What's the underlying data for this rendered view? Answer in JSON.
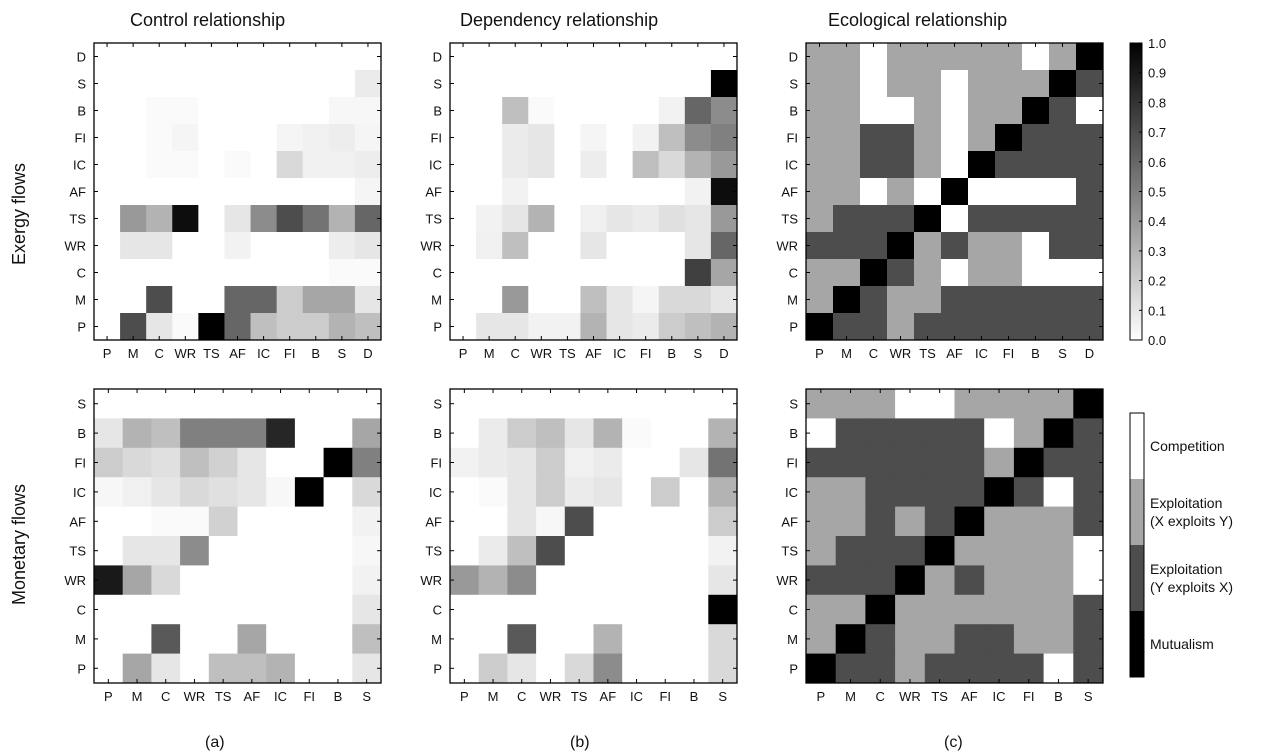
{
  "figure": {
    "col_titles": [
      "Control relationship",
      "Dependency relationship",
      "Ecological relationship"
    ],
    "row_titles": [
      "Exergy flows",
      "Monetary flows"
    ],
    "panel_labels": [
      "(a)",
      "(b)",
      "(c)"
    ]
  },
  "colorbar": {
    "ticks": [
      "1.0",
      "0.9",
      "0.8",
      "0.7",
      "0.6",
      "0.5",
      "0.4",
      "0.3",
      "0.2",
      "0.1",
      "0.0"
    ]
  },
  "legend": {
    "items": [
      {
        "label": "Competition",
        "code": 0,
        "color": "#ffffff"
      },
      {
        "label": "Exploitation\n(X exploits Y)",
        "code": 1,
        "color": "#a6a6a6"
      },
      {
        "label": "Exploitation\n(Y exploits X)",
        "code": 2,
        "color": "#4d4d4d"
      },
      {
        "label": "Mutualism",
        "code": 3,
        "color": "#000000"
      }
    ]
  },
  "chart_data": [
    {
      "id": "exergy-control",
      "type": "heatmap",
      "title": "",
      "x_labels": [
        "P",
        "M",
        "C",
        "WR",
        "TS",
        "AF",
        "IC",
        "FI",
        "B",
        "S",
        "D"
      ],
      "y_labels": [
        "D",
        "S",
        "B",
        "FI",
        "IC",
        "AF",
        "TS",
        "WR",
        "C",
        "M",
        "P"
      ],
      "scale": [
        0,
        1
      ],
      "values": [
        [
          0,
          0,
          0,
          0,
          0,
          0,
          0,
          0,
          0,
          0,
          0
        ],
        [
          0,
          0,
          0,
          0,
          0,
          0,
          0,
          0,
          0,
          0,
          0.08
        ],
        [
          0,
          0,
          0.02,
          0.02,
          0,
          0,
          0,
          0,
          0,
          0.03,
          0.03
        ],
        [
          0,
          0,
          0.02,
          0.04,
          0,
          0,
          0,
          0.04,
          0.06,
          0.07,
          0.04
        ],
        [
          0,
          0,
          0.02,
          0.02,
          0,
          0.02,
          0,
          0.15,
          0.06,
          0.06,
          0.07
        ],
        [
          0,
          0,
          0,
          0,
          0,
          0,
          0,
          0,
          0,
          0,
          0.04
        ],
        [
          0,
          0.4,
          0.3,
          0.95,
          0,
          0.1,
          0.45,
          0.7,
          0.55,
          0.3,
          0.6
        ],
        [
          0,
          0.1,
          0.1,
          0,
          0,
          0.05,
          0,
          0,
          0,
          0.07,
          0.1
        ],
        [
          0,
          0,
          0,
          0,
          0,
          0,
          0,
          0,
          0,
          0.02,
          0.02
        ],
        [
          0,
          0,
          0.7,
          0,
          0,
          0.6,
          0.6,
          0.2,
          0.35,
          0.35,
          0.1
        ],
        [
          0,
          0.7,
          0.1,
          0.02,
          1,
          0.6,
          0.25,
          0.2,
          0.2,
          0.3,
          0.25
        ]
      ]
    },
    {
      "id": "exergy-dependency",
      "type": "heatmap",
      "title": "",
      "x_labels": [
        "P",
        "M",
        "C",
        "WR",
        "TS",
        "AF",
        "IC",
        "FI",
        "B",
        "S",
        "D"
      ],
      "y_labels": [
        "D",
        "S",
        "B",
        "FI",
        "IC",
        "AF",
        "TS",
        "WR",
        "C",
        "M",
        "P"
      ],
      "scale": [
        0,
        1
      ],
      "values": [
        [
          0,
          0,
          0,
          0,
          0,
          0,
          0,
          0,
          0,
          0,
          0
        ],
        [
          0,
          0,
          0,
          0,
          0,
          0,
          0,
          0,
          0,
          0,
          1
        ],
        [
          0,
          0,
          0.25,
          0.02,
          0,
          0,
          0,
          0,
          0.05,
          0.6,
          0.45
        ],
        [
          0,
          0,
          0.08,
          0.1,
          0,
          0.04,
          0,
          0.05,
          0.25,
          0.45,
          0.5
        ],
        [
          0,
          0,
          0.08,
          0.1,
          0,
          0.07,
          0,
          0.25,
          0.15,
          0.3,
          0.4
        ],
        [
          0,
          0,
          0.05,
          0,
          0,
          0,
          0,
          0,
          0,
          0.05,
          0.95
        ],
        [
          0,
          0.05,
          0.1,
          0.3,
          0,
          0.06,
          0.1,
          0.08,
          0.12,
          0.1,
          0.4
        ],
        [
          0,
          0.06,
          0.25,
          0,
          0,
          0.1,
          0,
          0,
          0,
          0.1,
          0.6
        ],
        [
          0,
          0,
          0,
          0,
          0,
          0,
          0,
          0,
          0,
          0.75,
          0.35
        ],
        [
          0,
          0,
          0.4,
          0,
          0,
          0.25,
          0.1,
          0.04,
          0.15,
          0.15,
          0.1
        ],
        [
          0,
          0.1,
          0.1,
          0.05,
          0.05,
          0.3,
          0.1,
          0.08,
          0.2,
          0.25,
          0.3
        ]
      ]
    },
    {
      "id": "exergy-ecological",
      "type": "heatmap",
      "title": "",
      "x_labels": [
        "P",
        "M",
        "C",
        "WR",
        "TS",
        "AF",
        "IC",
        "FI",
        "B",
        "S",
        "D"
      ],
      "y_labels": [
        "D",
        "S",
        "B",
        "FI",
        "IC",
        "AF",
        "TS",
        "WR",
        "C",
        "M",
        "P"
      ],
      "scale": "categorical",
      "values": [
        [
          1,
          1,
          0,
          1,
          1,
          1,
          1,
          1,
          0,
          1,
          3
        ],
        [
          1,
          1,
          0,
          1,
          1,
          0,
          1,
          1,
          1,
          3,
          2
        ],
        [
          1,
          1,
          0,
          0,
          1,
          0,
          1,
          1,
          3,
          2,
          0
        ],
        [
          1,
          1,
          2,
          2,
          1,
          0,
          1,
          3,
          2,
          2,
          2
        ],
        [
          1,
          1,
          2,
          2,
          1,
          0,
          3,
          2,
          2,
          2,
          2
        ],
        [
          1,
          1,
          0,
          1,
          0,
          3,
          0,
          0,
          0,
          0,
          2
        ],
        [
          1,
          2,
          2,
          2,
          3,
          0,
          2,
          2,
          2,
          2,
          2
        ],
        [
          2,
          2,
          2,
          3,
          1,
          2,
          1,
          1,
          0,
          2,
          2
        ],
        [
          1,
          1,
          3,
          2,
          1,
          0,
          1,
          1,
          0,
          0,
          0
        ],
        [
          1,
          3,
          2,
          1,
          1,
          2,
          2,
          2,
          2,
          2,
          2
        ],
        [
          3,
          2,
          2,
          1,
          2,
          2,
          2,
          2,
          2,
          2,
          2
        ]
      ]
    },
    {
      "id": "monetary-control",
      "type": "heatmap",
      "title": "",
      "x_labels": [
        "P",
        "M",
        "C",
        "WR",
        "TS",
        "AF",
        "IC",
        "FI",
        "B",
        "S"
      ],
      "y_labels": [
        "S",
        "B",
        "FI",
        "IC",
        "AF",
        "TS",
        "WR",
        "C",
        "M",
        "P"
      ],
      "scale": [
        0,
        1
      ],
      "values": [
        [
          0,
          0,
          0,
          0,
          0,
          0,
          0,
          0,
          0,
          0
        ],
        [
          0.1,
          0.3,
          0.25,
          0.5,
          0.5,
          0.5,
          0.85,
          0,
          0,
          0.35
        ],
        [
          0.2,
          0.15,
          0.12,
          0.25,
          0.18,
          0.1,
          0,
          0,
          1,
          0.5
        ],
        [
          0.03,
          0.06,
          0.1,
          0.15,
          0.12,
          0.1,
          0.03,
          1,
          0,
          0.15
        ],
        [
          0,
          0,
          0.02,
          0.02,
          0.18,
          0,
          0,
          0,
          0,
          0.05
        ],
        [
          0,
          0.1,
          0.1,
          0.45,
          0,
          0,
          0,
          0,
          0,
          0.03
        ],
        [
          0.9,
          0.35,
          0.15,
          0,
          0,
          0,
          0,
          0,
          0,
          0.05
        ],
        [
          0,
          0,
          0,
          0,
          0,
          0,
          0,
          0,
          0,
          0.1
        ],
        [
          0,
          0,
          0.65,
          0,
          0,
          0.35,
          0,
          0,
          0,
          0.25
        ],
        [
          0,
          0.35,
          0.1,
          0,
          0.25,
          0.25,
          0.3,
          0,
          0,
          0.1
        ]
      ]
    },
    {
      "id": "monetary-dependency",
      "type": "heatmap",
      "title": "",
      "x_labels": [
        "P",
        "M",
        "C",
        "WR",
        "TS",
        "AF",
        "IC",
        "FI",
        "B",
        "S"
      ],
      "y_labels": [
        "S",
        "B",
        "FI",
        "IC",
        "AF",
        "TS",
        "WR",
        "C",
        "M",
        "P"
      ],
      "scale": [
        0,
        1
      ],
      "values": [
        [
          0,
          0,
          0,
          0,
          0,
          0,
          0,
          0,
          0,
          0
        ],
        [
          0,
          0.08,
          0.2,
          0.25,
          0.1,
          0.3,
          0.02,
          0,
          0,
          0.3
        ],
        [
          0.05,
          0.08,
          0.1,
          0.2,
          0.06,
          0.08,
          0,
          0,
          0.1,
          0.55
        ],
        [
          0,
          0.02,
          0.1,
          0.2,
          0.08,
          0.1,
          0,
          0.2,
          0,
          0.3
        ],
        [
          0,
          0,
          0.1,
          0.03,
          0.7,
          0,
          0,
          0,
          0,
          0.2
        ],
        [
          0,
          0.08,
          0.25,
          0.7,
          0,
          0,
          0,
          0,
          0,
          0.05
        ],
        [
          0.4,
          0.3,
          0.45,
          0,
          0,
          0,
          0,
          0,
          0,
          0.1
        ],
        [
          0,
          0,
          0,
          0,
          0,
          0,
          0,
          0,
          0,
          1
        ],
        [
          0,
          0,
          0.65,
          0,
          0,
          0.3,
          0,
          0,
          0,
          0.15
        ],
        [
          0,
          0.2,
          0.1,
          0,
          0.15,
          0.45,
          0,
          0,
          0,
          0.15
        ]
      ]
    },
    {
      "id": "monetary-ecological",
      "type": "heatmap",
      "title": "",
      "x_labels": [
        "P",
        "M",
        "C",
        "WR",
        "TS",
        "AF",
        "IC",
        "FI",
        "B",
        "S"
      ],
      "y_labels": [
        "S",
        "B",
        "FI",
        "IC",
        "AF",
        "TS",
        "WR",
        "C",
        "M",
        "P"
      ],
      "scale": "categorical",
      "values": [
        [
          1,
          1,
          1,
          0,
          0,
          1,
          1,
          1,
          1,
          3
        ],
        [
          0,
          2,
          2,
          2,
          2,
          2,
          0,
          1,
          3,
          2
        ],
        [
          2,
          2,
          2,
          2,
          2,
          2,
          1,
          3,
          2,
          2
        ],
        [
          1,
          1,
          2,
          2,
          2,
          2,
          3,
          2,
          0,
          2
        ],
        [
          1,
          1,
          2,
          1,
          2,
          3,
          1,
          1,
          1,
          2
        ],
        [
          1,
          2,
          2,
          2,
          3,
          1,
          1,
          1,
          1,
          0
        ],
        [
          2,
          2,
          2,
          3,
          1,
          2,
          1,
          1,
          1,
          0
        ],
        [
          1,
          1,
          3,
          1,
          1,
          1,
          1,
          1,
          1,
          2
        ],
        [
          1,
          3,
          2,
          1,
          1,
          2,
          2,
          1,
          1,
          2
        ],
        [
          3,
          2,
          2,
          1,
          2,
          2,
          2,
          2,
          0,
          2
        ]
      ]
    }
  ]
}
